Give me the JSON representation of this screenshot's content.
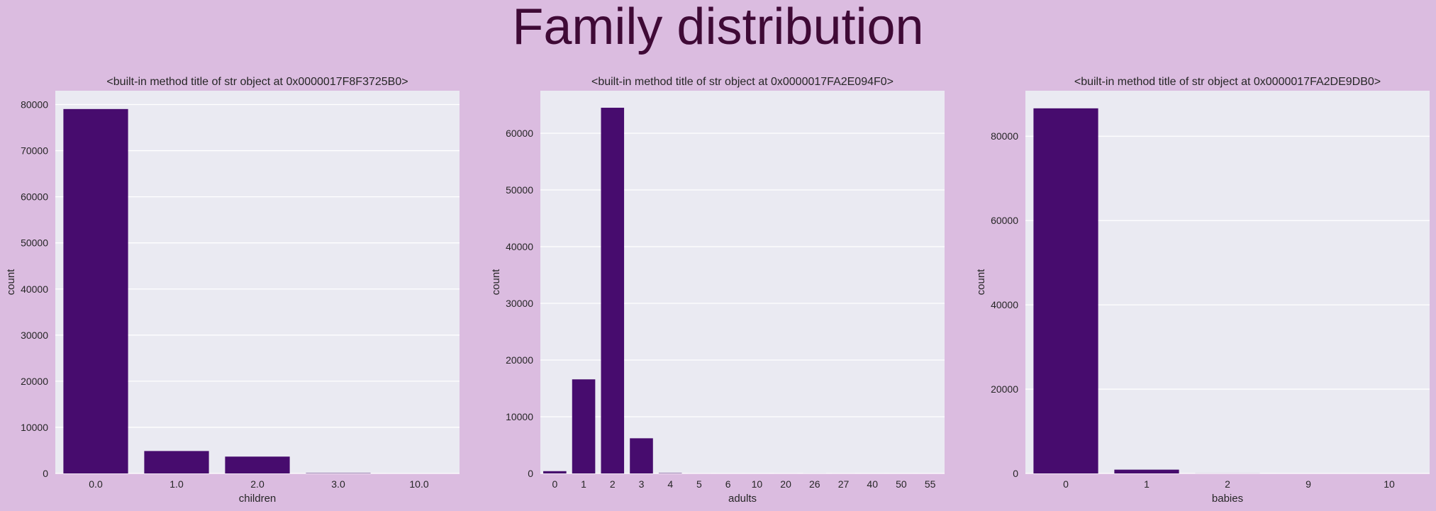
{
  "suptitle": "Family distribution",
  "colors": {
    "figure_bg": "#dbbce0",
    "axes_bg": "#eaeaf2",
    "bar": "#470c6e",
    "title": "#3f0a36"
  },
  "chart_data": [
    {
      "type": "bar",
      "title": "<built-in method title of str object at 0x0000017F8F3725B0>",
      "xlabel": "children",
      "ylabel": "count",
      "categories": [
        "0.0",
        "1.0",
        "2.0",
        "3.0",
        "10.0"
      ],
      "values": [
        79028,
        4861,
        3652,
        75,
        1
      ],
      "ylim": [
        0,
        83000
      ],
      "yticks": [
        0,
        10000,
        20000,
        30000,
        40000,
        50000,
        60000,
        70000,
        80000
      ],
      "grid": true
    },
    {
      "type": "bar",
      "title": "<built-in method title of str object at 0x0000017FA2E094F0>",
      "xlabel": "adults",
      "ylabel": "count",
      "categories": [
        "0",
        "1",
        "2",
        "3",
        "4",
        "5",
        "6",
        "10",
        "20",
        "26",
        "27",
        "40",
        "50",
        "55"
      ],
      "values": [
        403,
        16594,
        64497,
        6202,
        62,
        2,
        1,
        1,
        2,
        5,
        2,
        1,
        1,
        1
      ],
      "ylim": [
        0,
        67500
      ],
      "yticks": [
        0,
        10000,
        20000,
        30000,
        40000,
        50000,
        60000
      ],
      "grid": true
    },
    {
      "type": "bar",
      "title": "<built-in method title of str object at 0x0000017FA2DE9DB0>",
      "xlabel": "babies",
      "ylabel": "count",
      "categories": [
        "0",
        "1",
        "2",
        "9",
        "10"
      ],
      "values": [
        86620,
        900,
        15,
        1,
        1
      ],
      "ylim": [
        0,
        90800
      ],
      "yticks": [
        0,
        20000,
        40000,
        60000,
        80000
      ],
      "grid": true
    }
  ]
}
